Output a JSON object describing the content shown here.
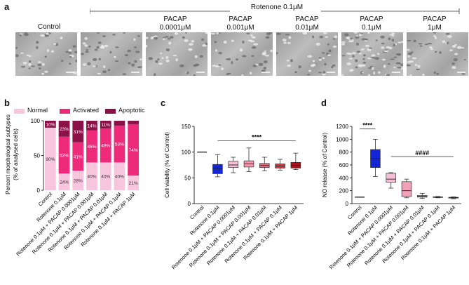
{
  "panel_a": {
    "letter": "a",
    "treatment_header": "Rotenone 0.1μM",
    "control_label": "Control",
    "conditions": [
      "Control",
      "PACAP 0.0001μM",
      "PACAP 0.001μM",
      "PACAP 0.01μM",
      "PACAP 0.1μM",
      "PACAP 1μM"
    ],
    "condition_lines": [
      [
        "PACAP",
        "0.0001μM"
      ],
      [
        "PACAP",
        "0.001μM"
      ],
      [
        "PACAP",
        "0.01μM"
      ],
      [
        "PACAP",
        "0.1μM"
      ],
      [
        "PACAP",
        "1μM"
      ]
    ]
  },
  "chart_data": [
    {
      "panel": "b",
      "type": "bar",
      "stacked": true,
      "ylabel": "Percent morphological subtypes\n(% of analysed cells)",
      "ylim": [
        0,
        100
      ],
      "yticks": [
        0,
        50,
        100
      ],
      "legend": [
        "Normal",
        "Activated",
        "Apoptotic"
      ],
      "legend_position": "top",
      "categories": [
        "Control",
        "Rotenone 0.1μM",
        "Rotenone 0.1μM + PACAP 0.0001μM",
        "Rotenone 0.1μM + PACAP 0.001μM",
        "Rotenone 0.1μM + PACAP 0.01μM",
        "Rotenone 0.1μM + PACAP 0.1μM",
        "Rotenone 0.1μM + PACAP 1μM"
      ],
      "series": [
        {
          "name": "Normal",
          "color": "#f7c6dd",
          "values": [
            90,
            24,
            28,
            40,
            40,
            40,
            21
          ],
          "labels": [
            "90%",
            "24%",
            "28%",
            "40%",
            "40%",
            "40%",
            "21%"
          ]
        },
        {
          "name": "Activated",
          "color": "#ee2a7b",
          "values": [
            0,
            53,
            41,
            46,
            49,
            53,
            74
          ],
          "labels": [
            "",
            "53%",
            "41%",
            "46%",
            "49%",
            "53%",
            "74%"
          ]
        },
        {
          "name": "Apoptotic",
          "color": "#8b1249",
          "values": [
            10,
            23,
            31,
            14,
            11,
            7,
            5
          ],
          "labels": [
            "10%",
            "23%",
            "31%",
            "14%",
            "11%",
            "",
            ""
          ]
        }
      ]
    },
    {
      "panel": "c",
      "type": "box",
      "ylabel": "Cell viability (% of Control)",
      "ylim": [
        0,
        150
      ],
      "yticks": [
        0,
        50,
        100,
        150
      ],
      "categories": [
        "Control",
        "Rotenone 0.1μM",
        "Rotenone 0.1μM + PACAP 0.0001μM",
        "Rotenone 0.1μM + PACAP 0.001μM",
        "Rotenone 0.1μM + PACAP 0.01μM",
        "Rotenone 0.1μM + PACAP 0.1μM",
        "Rotenone 0.1μM + PACAP 1μM"
      ],
      "colors": [
        "#000000",
        "#1226d6",
        "#f4bfd4",
        "#ef9aae",
        "#e8707f",
        "#d93a3e",
        "#a8121a"
      ],
      "boxes": [
        {
          "min": 100,
          "q1": 100,
          "median": 100,
          "q3": 100,
          "max": 100
        },
        {
          "min": 52,
          "q1": 58,
          "median": 68,
          "q3": 76,
          "max": 95
        },
        {
          "min": 60,
          "q1": 70,
          "median": 75,
          "q3": 82,
          "max": 90
        },
        {
          "min": 62,
          "q1": 71,
          "median": 77,
          "q3": 83,
          "max": 108
        },
        {
          "min": 64,
          "q1": 70,
          "median": 74,
          "q3": 78,
          "max": 90
        },
        {
          "min": 65,
          "q1": 69,
          "median": 73,
          "q3": 77,
          "max": 86
        },
        {
          "min": 66,
          "q1": 69,
          "median": 74,
          "q3": 80,
          "max": 98
        }
      ],
      "annotations": [
        {
          "text": "****",
          "from": 1,
          "to": 6,
          "y": 122
        }
      ]
    },
    {
      "panel": "d",
      "type": "box",
      "ylabel": "NO release (% of Control)",
      "ylim": [
        0,
        1200
      ],
      "yticks": [
        0,
        200,
        400,
        600,
        800,
        1000,
        1200
      ],
      "categories": [
        "Control",
        "Rotenone 0.1μM",
        "Rotenone 0.1μM + PACAP 0.0001μM",
        "Rotenone 0.1μM + PACAP 0.001μM",
        "Rotenone 0.1μM + PACAP 0.01μM",
        "Rotenone 0.1μM + PACAP 0.1μM",
        "Rotenone 0.1μM + PACAP 1μM"
      ],
      "colors": [
        "#000000",
        "#1226d6",
        "#f4bfd4",
        "#f0a0b8",
        "#b9b9b9",
        "#b9b9b9",
        "#b9b9b9"
      ],
      "boxes": [
        {
          "min": 100,
          "q1": 100,
          "median": 100,
          "q3": 100,
          "max": 100
        },
        {
          "min": 420,
          "q1": 560,
          "median": 700,
          "q3": 840,
          "max": 1000
        },
        {
          "min": 240,
          "q1": 330,
          "median": 380,
          "q3": 470,
          "max": 480
        },
        {
          "min": 90,
          "q1": 110,
          "median": 200,
          "q3": 340,
          "max": 380
        },
        {
          "min": 80,
          "q1": 100,
          "median": 110,
          "q3": 125,
          "max": 160
        },
        {
          "min": 90,
          "q1": 95,
          "median": 100,
          "q3": 105,
          "max": 110
        },
        {
          "min": 75,
          "q1": 85,
          "median": 92,
          "q3": 98,
          "max": 105
        }
      ],
      "annotations": [
        {
          "text": "****",
          "from": 0,
          "to": 1,
          "y": 1160
        },
        {
          "text": "####",
          "from": 2,
          "to": 6,
          "y": 730
        }
      ]
    }
  ]
}
